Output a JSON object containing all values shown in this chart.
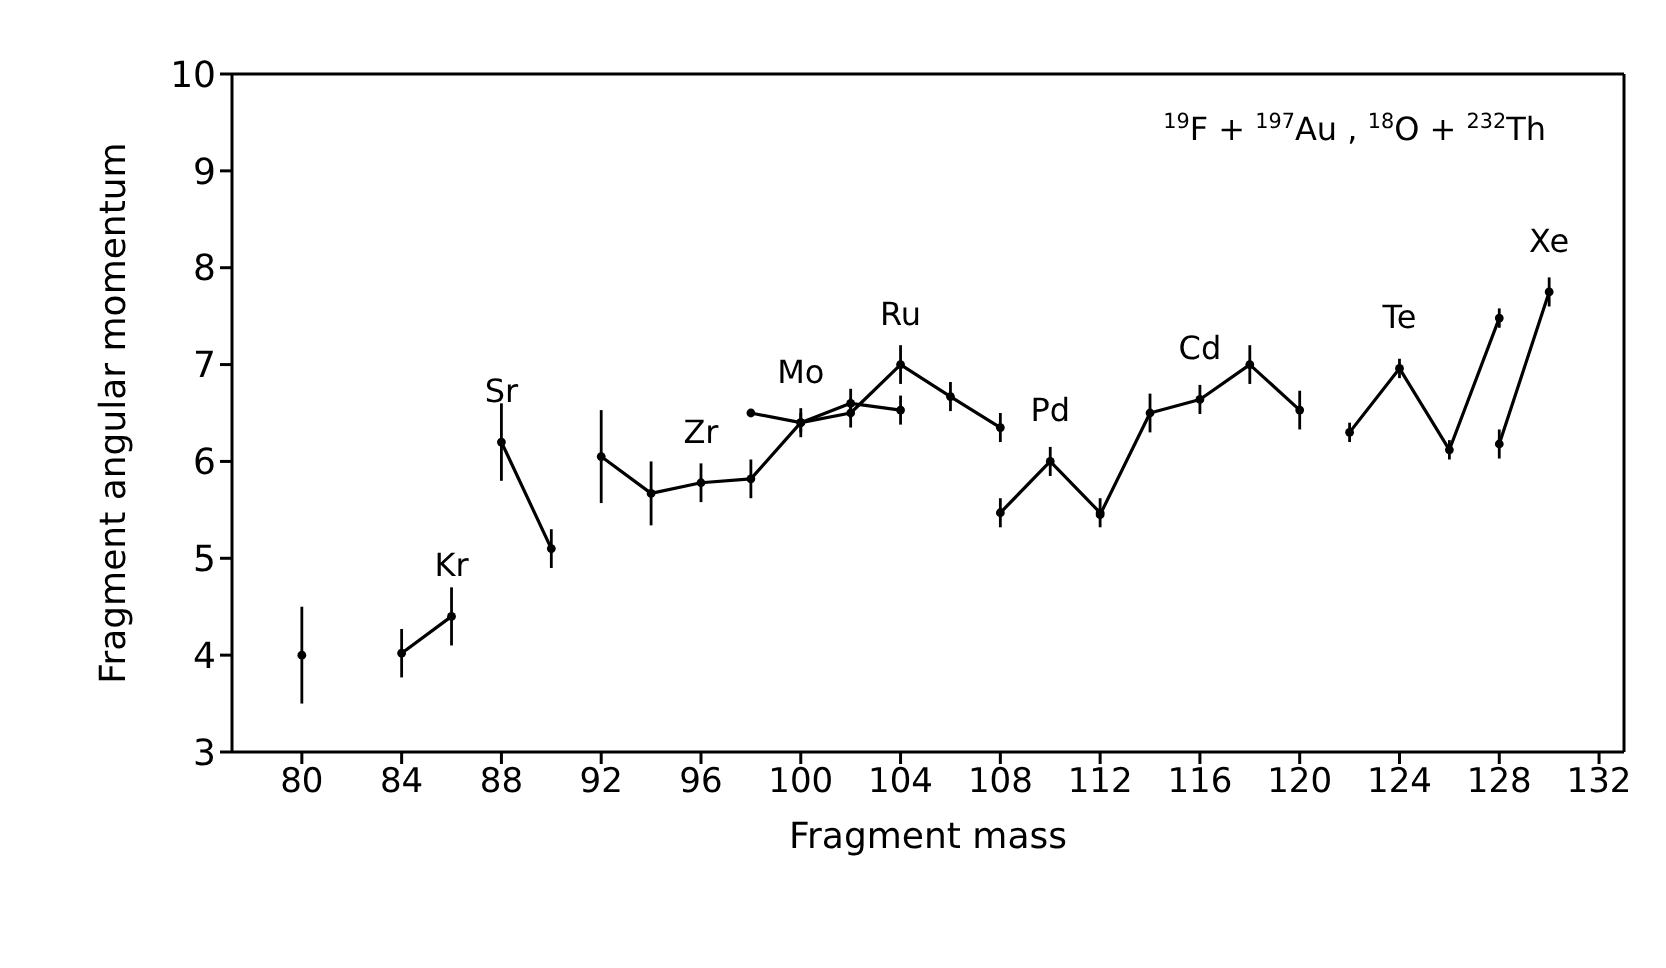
{
  "chart_data": {
    "type": "line",
    "xlabel": "Fragment mass",
    "ylabel": "Fragment angular momentum",
    "xlim": [
      77.2,
      133
    ],
    "ylim": [
      3,
      10
    ],
    "xticks": [
      80,
      84,
      88,
      92,
      96,
      100,
      104,
      108,
      112,
      116,
      120,
      124,
      128,
      132
    ],
    "yticks": [
      3,
      4,
      5,
      6,
      7,
      8,
      9,
      10
    ],
    "marker": "circle",
    "line_style": "solid",
    "series": [
      {
        "color": "#000000",
        "x": [
          80
        ],
        "values": [
          4.0
        ],
        "errors": [
          0.5
        ]
      },
      {
        "color": "#000000",
        "x": [
          84,
          86
        ],
        "values": [
          4.02,
          4.4
        ],
        "errors": [
          0.25,
          0.3
        ]
      },
      {
        "color": "#000000",
        "x": [
          88,
          90
        ],
        "values": [
          6.2,
          5.1
        ],
        "errors": [
          0.4,
          0.2
        ]
      },
      {
        "color": "#000000",
        "x": [
          92,
          94,
          96,
          98,
          100,
          102,
          104,
          106,
          108
        ],
        "values": [
          6.05,
          5.67,
          5.78,
          5.82,
          6.4,
          6.5,
          7.0,
          6.67,
          6.35
        ],
        "errors": [
          0.48,
          0.33,
          0.2,
          0.2,
          0.15,
          0.15,
          0.2,
          0.15,
          0.15
        ]
      },
      {
        "color": "#000000",
        "x": [
          98,
          100,
          102,
          104
        ],
        "values": [
          6.5,
          6.4,
          6.6,
          6.53
        ],
        "errors": [
          null,
          0.1,
          0.15,
          0.15
        ]
      },
      {
        "color": "#000000",
        "x": [
          108,
          110,
          112
        ],
        "values": [
          5.47,
          6.0,
          5.47
        ],
        "errors": [
          0.15,
          0.15,
          0.15
        ]
      },
      {
        "color": "#000000",
        "x": [
          112,
          114,
          116,
          118,
          120
        ],
        "values": [
          5.45,
          6.5,
          6.64,
          7.0,
          6.53
        ],
        "errors": [
          null,
          0.2,
          0.15,
          0.2,
          0.2
        ]
      },
      {
        "color": "#000000",
        "x": [
          122,
          124,
          126,
          128
        ],
        "values": [
          6.3,
          6.96,
          6.12,
          7.48
        ],
        "errors": [
          0.1,
          0.1,
          0.1,
          0.1
        ]
      },
      {
        "color": "#000000",
        "x": [
          128,
          130
        ],
        "values": [
          6.18,
          7.75
        ],
        "errors": [
          0.15,
          0.15
        ]
      }
    ],
    "annotations": [
      "$^{19}$F + $^{197}$Au , $^{18}$O + $^{232}$Th",
      {
        "text": "Kr",
        "x": 86,
        "y": 4.4
      },
      {
        "text": "Sr",
        "x": 88,
        "y": 6.2
      },
      {
        "text": "Zr",
        "x": 96,
        "y": 5.78
      },
      {
        "text": "Mo",
        "x": 100,
        "y": 6.4
      },
      {
        "text": "Ru",
        "x": 104,
        "y": 7.0
      },
      {
        "text": "Pd",
        "x": 110,
        "y": 6.0
      },
      {
        "text": "Cd",
        "x": 116,
        "y": 6.64
      },
      {
        "text": "Te",
        "x": 124,
        "y": 6.96
      },
      {
        "text": "Xe",
        "x": 130,
        "y": 7.75
      }
    ]
  }
}
